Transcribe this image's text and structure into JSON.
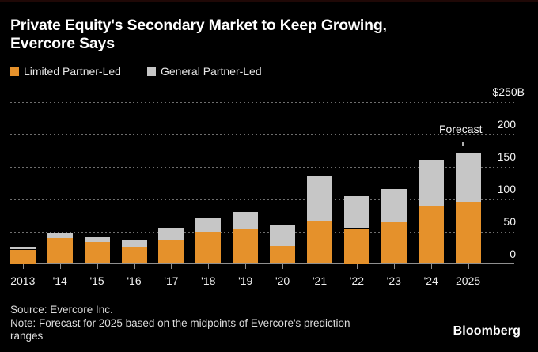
{
  "header": {
    "title_lines": [
      "Private Equity's Secondary Market to Keep Growing,",
      "Evercore Says"
    ]
  },
  "chart_data": {
    "type": "bar",
    "stacked": true,
    "title": "Private Equity's Secondary Market to Keep Growing, Evercore Says",
    "unit": "billions of US dollars",
    "categories": [
      "2013",
      "'14",
      "'15",
      "'16",
      "'17",
      "'18",
      "'19",
      "'20",
      "'21",
      "'22",
      "'23",
      "'24",
      "2025"
    ],
    "series": [
      {
        "name": "Limited Partner-Led",
        "color": "#E5912B",
        "values": [
          22,
          40,
          34,
          26,
          37,
          49,
          54,
          28,
          67,
          55,
          64,
          90,
          96
        ]
      },
      {
        "name": "General Partner-Led",
        "color": "#C6C6C6",
        "values": [
          4,
          7,
          7,
          10,
          19,
          23,
          26,
          32,
          68,
          49,
          51,
          71,
          76
        ]
      }
    ],
    "totals": [
      26,
      47,
      41,
      36,
      56,
      72,
      80,
      60,
      135,
      104,
      115,
      161,
      172
    ],
    "ylim": [
      0,
      250
    ],
    "yticks": [
      0,
      50,
      100,
      150,
      200,
      250
    ],
    "ytick_labels": [
      "0",
      "50",
      "100",
      "150",
      "200",
      "$250B"
    ],
    "grid": "horizontal dotted",
    "legend_position": "top-left",
    "annotations": [
      {
        "text": "Forecast",
        "target": "2025"
      }
    ]
  },
  "footer": {
    "source": "Source: Evercore Inc.",
    "note": "Note: Forecast for 2025 based on the midpoints of Evercore's prediction ranges",
    "brand": "Bloomberg"
  }
}
